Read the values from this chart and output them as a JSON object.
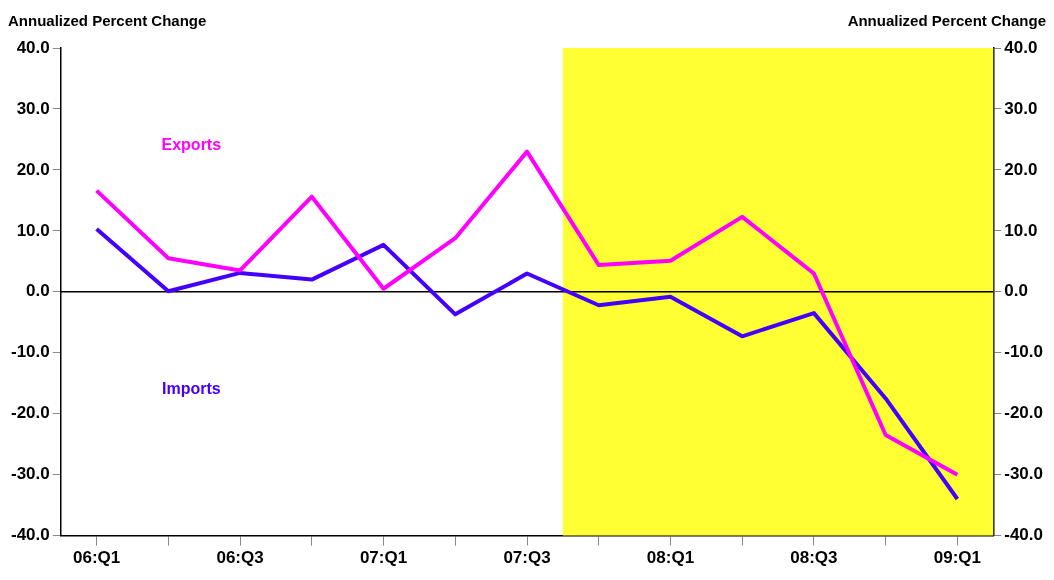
{
  "chart_data": {
    "type": "line",
    "ylabel": "Annualized Percent Change",
    "y2label": "Annualized Percent Change",
    "categories": [
      "06:Q1",
      null,
      "06:Q3",
      null,
      "07:Q1",
      null,
      "07:Q3",
      null,
      "08:Q1",
      null,
      "08:Q3",
      null,
      "09:Q1"
    ],
    "series": [
      {
        "name": "Exports",
        "color": "#ff00ff",
        "values": [
          16.6,
          5.5,
          3.5,
          15.6,
          0.5,
          8.8,
          23.0,
          4.4,
          5.1,
          12.3,
          3.0,
          -23.5,
          -30.0
        ]
      },
      {
        "name": "Imports",
        "color": "#4400ff",
        "values": [
          10.3,
          0.1,
          3.1,
          2.0,
          7.7,
          -3.7,
          3.0,
          -2.2,
          -0.8,
          -7.3,
          -3.5,
          -17.5,
          -34.0
        ]
      }
    ],
    "ylim": [
      -40,
      40
    ],
    "yticks": [
      {
        "value": -40,
        "label": "-40.0"
      },
      {
        "value": -30,
        "label": "-30.0"
      },
      {
        "value": -20,
        "label": "-20.0"
      },
      {
        "value": -10,
        "label": "-10.0"
      },
      {
        "value": 0,
        "label": "0.0"
      },
      {
        "value": 10,
        "label": "10.0"
      },
      {
        "value": 20,
        "label": "20.0"
      },
      {
        "value": 30,
        "label": "30.0"
      },
      {
        "value": 40,
        "label": "40.0"
      }
    ],
    "y2lim": [
      -40,
      40
    ],
    "y2ticks": [
      {
        "value": -40,
        "label": "-40.0"
      },
      {
        "value": -30,
        "label": "-30.0"
      },
      {
        "value": -20,
        "label": "-20.0"
      },
      {
        "value": -10,
        "label": "-10.0"
      },
      {
        "value": 0,
        "label": "0.0"
      },
      {
        "value": 10,
        "label": "10.0"
      },
      {
        "value": 20,
        "label": "20.0"
      },
      {
        "value": 30,
        "label": "30.0"
      },
      {
        "value": 40,
        "label": "40.0"
      }
    ],
    "bands": [
      {
        "axis": "x",
        "from": "07:Q3",
        "to": "09:Q1",
        "color": "#ffff33"
      }
    ],
    "ref_lines": [
      {
        "axis": "y",
        "value": 0,
        "color": "#000000"
      }
    ],
    "marker": "none",
    "line_style": "solid"
  }
}
